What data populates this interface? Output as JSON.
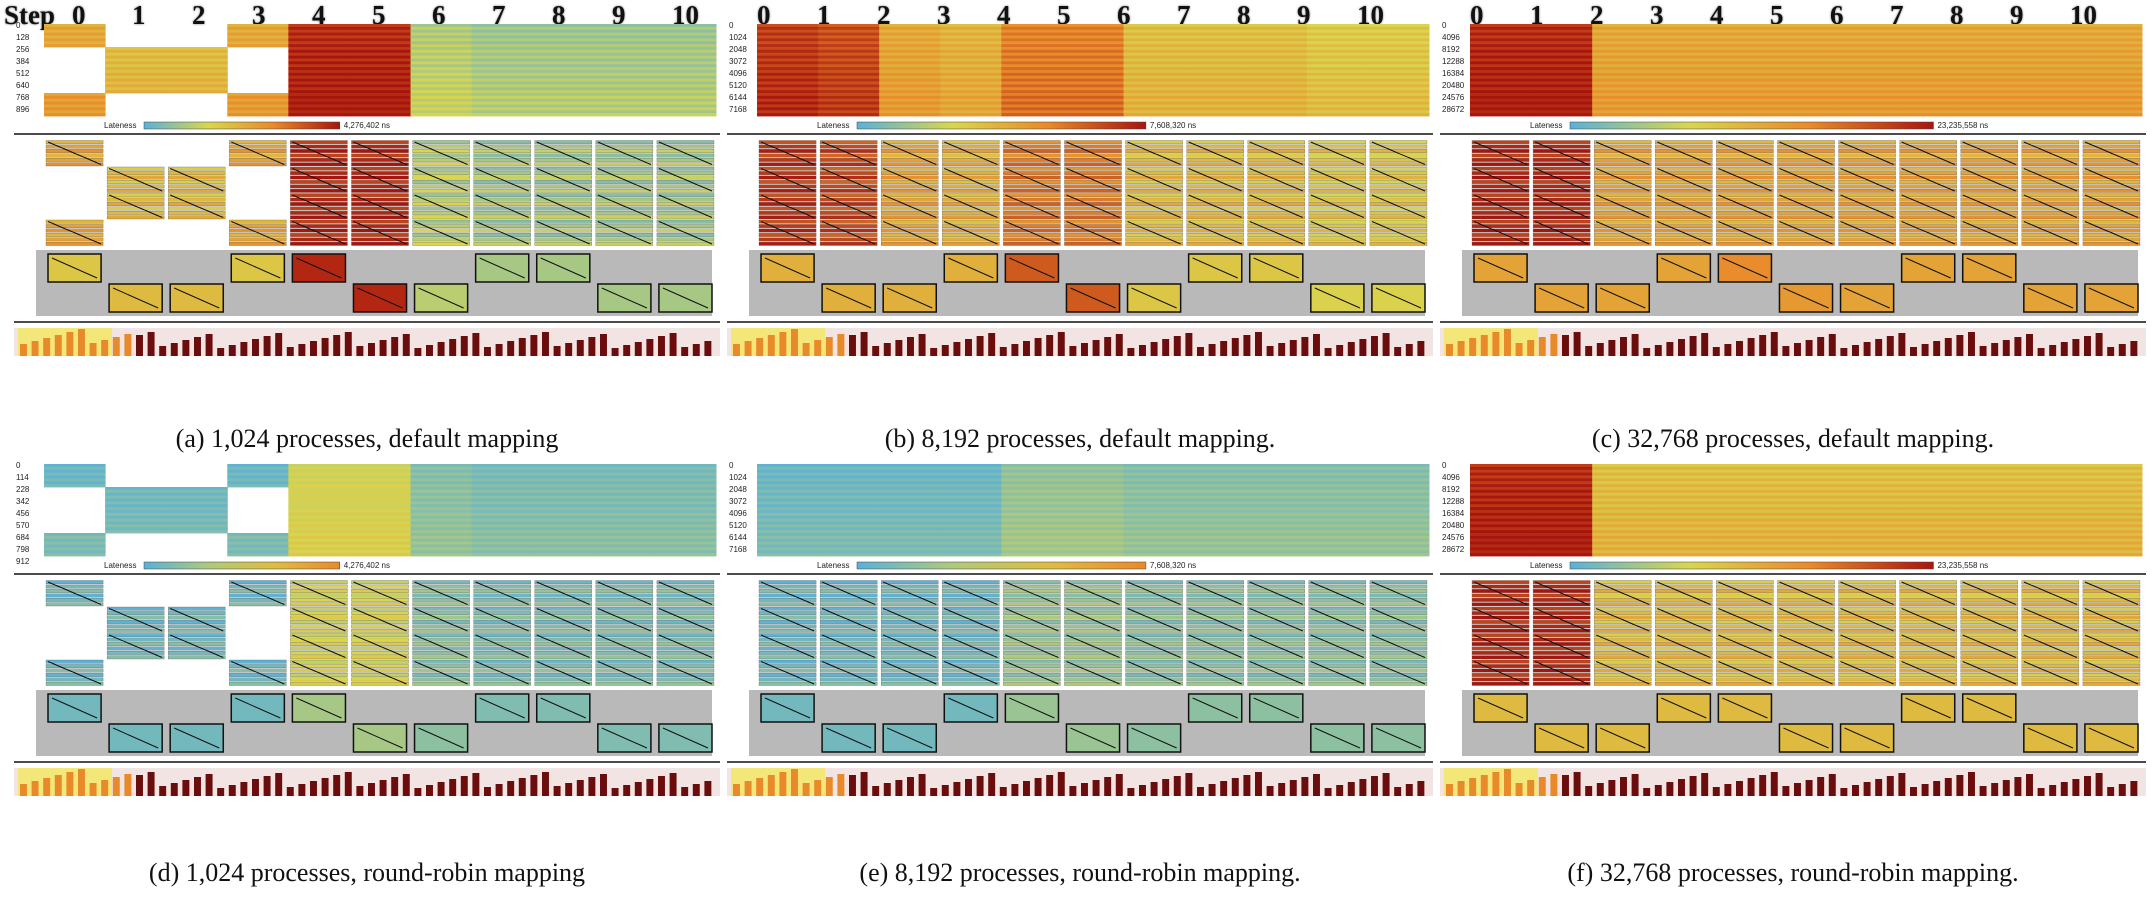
{
  "header": {
    "step_title": "Step",
    "steps": [
      "0",
      "1",
      "2",
      "3",
      "4",
      "5",
      "6",
      "7",
      "8",
      "9",
      "10"
    ]
  },
  "panels": [
    {
      "id": "a",
      "caption": "(a) 1,024 processes, default mapping",
      "ranks": [
        "0",
        "128",
        "256",
        "384",
        "512",
        "640",
        "768",
        "896"
      ],
      "lateness_label": "Lateness",
      "lateness_max": "4,276,402 ns",
      "lateness_pct": 0.42,
      "scheme": "cool-hot",
      "step_lateness": [
        0.55,
        0.45,
        0.45,
        0.55,
        0.95,
        0.95,
        0.25,
        0.2,
        0.2,
        0.2,
        0.2
      ],
      "step_groups": [
        [
          1,
          0,
          0,
          1
        ],
        [
          0,
          1,
          1,
          0
        ],
        [
          0,
          1,
          1,
          0
        ],
        [
          1,
          0,
          0,
          1
        ],
        [
          1,
          1,
          1,
          1
        ],
        [
          1,
          1,
          1,
          1
        ],
        [
          1,
          1,
          1,
          1
        ],
        [
          1,
          1,
          1,
          1
        ],
        [
          1,
          1,
          1,
          1
        ],
        [
          1,
          1,
          1,
          1
        ],
        [
          1,
          1,
          1,
          1
        ]
      ],
      "node_pattern": [
        0,
        1,
        1,
        0,
        0,
        1,
        1,
        0,
        0,
        1,
        1
      ],
      "node_lateness": [
        0.4,
        0.45,
        0.45,
        0.4,
        0.95,
        0.95,
        0.25,
        0.2,
        0.2,
        0.2,
        0.2
      ]
    },
    {
      "id": "b",
      "caption": "(b) 8,192 processes, default mapping.",
      "ranks": [
        "0",
        "1024",
        "2048",
        "3072",
        "4096",
        "5120",
        "6144",
        "7168"
      ],
      "lateness_label": "Lateness",
      "lateness_max": "7,608,320 ns",
      "lateness_pct": 0.62,
      "scheme": "cool-hot",
      "step_lateness": [
        0.9,
        0.85,
        0.55,
        0.5,
        0.7,
        0.7,
        0.45,
        0.45,
        0.45,
        0.4,
        0.4
      ],
      "step_groups": [
        [
          1,
          1,
          1,
          1
        ],
        [
          1,
          1,
          1,
          1
        ],
        [
          1,
          1,
          1,
          1
        ],
        [
          1,
          1,
          1,
          1
        ],
        [
          1,
          1,
          1,
          1
        ],
        [
          1,
          1,
          1,
          1
        ],
        [
          1,
          1,
          1,
          1
        ],
        [
          1,
          1,
          1,
          1
        ],
        [
          1,
          1,
          1,
          1
        ],
        [
          1,
          1,
          1,
          1
        ],
        [
          1,
          1,
          1,
          1
        ]
      ],
      "node_pattern": [
        0,
        1,
        1,
        0,
        0,
        1,
        1,
        0,
        0,
        1,
        1
      ],
      "node_lateness": [
        0.5,
        0.5,
        0.5,
        0.5,
        0.8,
        0.8,
        0.4,
        0.4,
        0.4,
        0.35,
        0.35
      ]
    },
    {
      "id": "c",
      "caption": "(c) 32,768 processes, default mapping.",
      "ranks": [
        "0",
        "4096",
        "8192",
        "12288",
        "16384",
        "20480",
        "24576",
        "28672"
      ],
      "lateness_label": "Lateness",
      "lateness_max": "23,235,558 ns",
      "lateness_pct": 0.78,
      "scheme": "cool-hot",
      "step_lateness": [
        0.95,
        0.95,
        0.55,
        0.55,
        0.55,
        0.55,
        0.55,
        0.55,
        0.55,
        0.55,
        0.55
      ],
      "step_groups": [
        [
          1,
          1,
          1,
          1
        ],
        [
          1,
          1,
          1,
          1
        ],
        [
          1,
          1,
          1,
          1
        ],
        [
          1,
          1,
          1,
          1
        ],
        [
          1,
          1,
          1,
          1
        ],
        [
          1,
          1,
          1,
          1
        ],
        [
          1,
          1,
          1,
          1
        ],
        [
          1,
          1,
          1,
          1
        ],
        [
          1,
          1,
          1,
          1
        ],
        [
          1,
          1,
          1,
          1
        ],
        [
          1,
          1,
          1,
          1
        ]
      ],
      "node_pattern": [
        0,
        1,
        1,
        0,
        0,
        1,
        1,
        0,
        0,
        1,
        1
      ],
      "node_lateness": [
        0.55,
        0.55,
        0.55,
        0.55,
        0.65,
        0.6,
        0.55,
        0.55,
        0.55,
        0.55,
        0.55
      ]
    },
    {
      "id": "d",
      "caption": "(d) 1,024 processes, round-robin mapping",
      "ranks": [
        "0",
        "114",
        "228",
        "342",
        "456",
        "570",
        "684",
        "798",
        "912"
      ],
      "lateness_label": "Lateness",
      "lateness_max": "4,276,402 ns",
      "lateness_pct": 0.42,
      "scheme": "cool-warm",
      "step_lateness": [
        0.1,
        0.1,
        0.1,
        0.1,
        0.5,
        0.5,
        0.2,
        0.15,
        0.15,
        0.15,
        0.15
      ],
      "step_groups": [
        [
          1,
          0,
          0,
          1
        ],
        [
          0,
          1,
          1,
          0
        ],
        [
          0,
          1,
          1,
          0
        ],
        [
          1,
          0,
          0,
          1
        ],
        [
          1,
          1,
          1,
          1
        ],
        [
          1,
          1,
          1,
          1
        ],
        [
          1,
          1,
          1,
          1
        ],
        [
          1,
          1,
          1,
          1
        ],
        [
          1,
          1,
          1,
          1
        ],
        [
          1,
          1,
          1,
          1
        ],
        [
          1,
          1,
          1,
          1
        ]
      ],
      "node_pattern": [
        0,
        1,
        1,
        0,
        0,
        1,
        1,
        0,
        0,
        1,
        1
      ],
      "node_lateness": [
        0.1,
        0.1,
        0.1,
        0.1,
        0.3,
        0.3,
        0.2,
        0.15,
        0.15,
        0.15,
        0.15
      ]
    },
    {
      "id": "e",
      "caption": "(e) 8,192 processes, round-robin mapping.",
      "ranks": [
        "0",
        "1024",
        "2048",
        "3072",
        "4096",
        "5120",
        "6144",
        "7168"
      ],
      "lateness_label": "Lateness",
      "lateness_max": "7,608,320 ns",
      "lateness_pct": 0.62,
      "scheme": "cool-warm",
      "step_lateness": [
        0.1,
        0.1,
        0.1,
        0.1,
        0.25,
        0.25,
        0.2,
        0.2,
        0.2,
        0.2,
        0.2
      ],
      "step_groups": [
        [
          1,
          1,
          1,
          1
        ],
        [
          1,
          1,
          1,
          1
        ],
        [
          1,
          1,
          1,
          1
        ],
        [
          1,
          1,
          1,
          1
        ],
        [
          1,
          1,
          1,
          1
        ],
        [
          1,
          1,
          1,
          1
        ],
        [
          1,
          1,
          1,
          1
        ],
        [
          1,
          1,
          1,
          1
        ],
        [
          1,
          1,
          1,
          1
        ],
        [
          1,
          1,
          1,
          1
        ],
        [
          1,
          1,
          1,
          1
        ]
      ],
      "node_pattern": [
        0,
        1,
        1,
        0,
        0,
        1,
        1,
        0,
        0,
        1,
        1
      ],
      "node_lateness": [
        0.1,
        0.1,
        0.1,
        0.1,
        0.25,
        0.25,
        0.2,
        0.2,
        0.2,
        0.2,
        0.2
      ]
    },
    {
      "id": "f",
      "caption": "(f) 32,768 processes, round-robin mapping.",
      "ranks": [
        "0",
        "4096",
        "8192",
        "12288",
        "16384",
        "20480",
        "24576",
        "28672"
      ],
      "lateness_label": "Lateness",
      "lateness_max": "23,235,558 ns",
      "lateness_pct": 0.78,
      "scheme": "cool-hot",
      "step_lateness": [
        0.95,
        0.95,
        0.45,
        0.45,
        0.45,
        0.45,
        0.45,
        0.45,
        0.45,
        0.45,
        0.45
      ],
      "step_groups": [
        [
          1,
          1,
          1,
          1
        ],
        [
          1,
          1,
          1,
          1
        ],
        [
          1,
          1,
          1,
          1
        ],
        [
          1,
          1,
          1,
          1
        ],
        [
          1,
          1,
          1,
          1
        ],
        [
          1,
          1,
          1,
          1
        ],
        [
          1,
          1,
          1,
          1
        ],
        [
          1,
          1,
          1,
          1
        ],
        [
          1,
          1,
          1,
          1
        ],
        [
          1,
          1,
          1,
          1
        ],
        [
          1,
          1,
          1,
          1
        ]
      ],
      "node_pattern": [
        0,
        1,
        1,
        0,
        0,
        1,
        1,
        0,
        0,
        1,
        1
      ],
      "node_lateness": [
        0.45,
        0.45,
        0.45,
        0.45,
        0.45,
        0.45,
        0.45,
        0.45,
        0.45,
        0.45,
        0.45
      ]
    }
  ],
  "colors": {
    "cool": "#5ab1d9",
    "mid": "#d9d64e",
    "warm": "#e98a2a",
    "hot": "#a8150e",
    "grey": "#b9b9b9",
    "highlight": "#f3e77a",
    "bar": "#6b0d0d"
  }
}
